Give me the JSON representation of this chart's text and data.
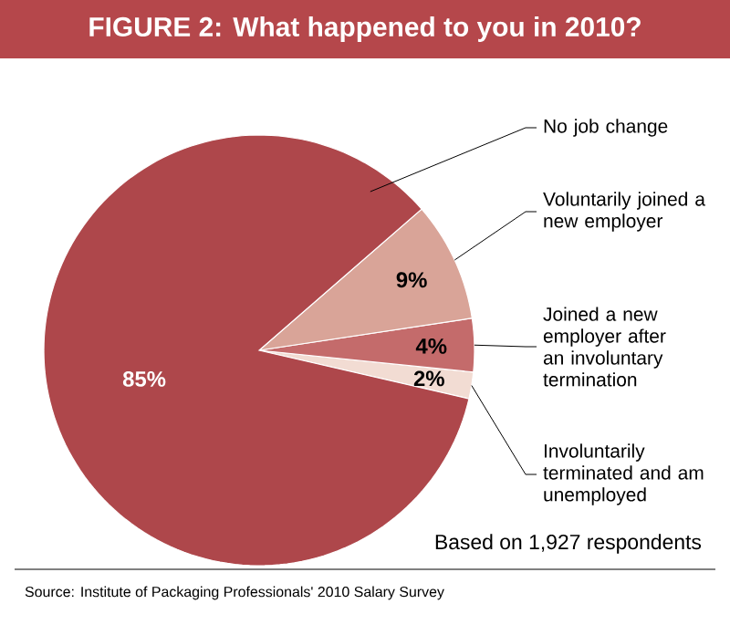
{
  "chart_data": {
    "type": "pie",
    "title": "FIGURE 2: What happened to you in 2010?",
    "categories": [
      "No job change",
      "Voluntarily joined a new employer",
      "Joined a new employer after an involuntary termination",
      "Involuntarily terminated and am unemployed"
    ],
    "values": [
      85,
      9,
      4,
      2
    ],
    "value_labels": [
      "85%",
      "9%",
      "4%",
      "2%"
    ],
    "colors": [
      "#ae474b",
      "#d9a498",
      "#c46b6b",
      "#f2dcd3"
    ],
    "annotations": [
      "Based on 1,927 respondents",
      "Source: Institute of Packaging Professionals' 2010 Salary Survey"
    ]
  }
}
